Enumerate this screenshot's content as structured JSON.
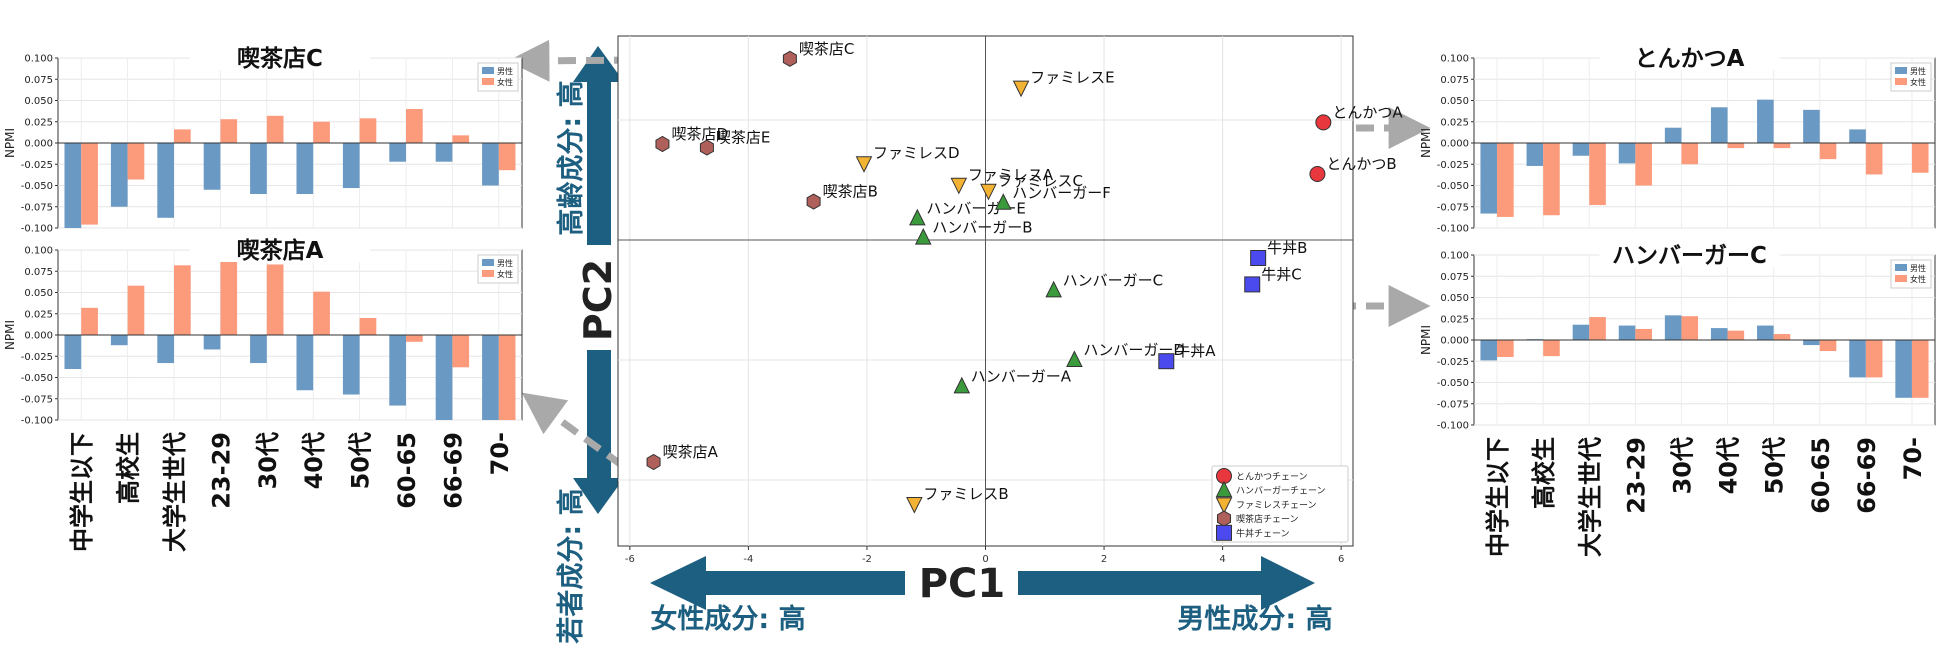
{
  "colors": {
    "male": "#6a99c4",
    "female": "#fb9b7c",
    "axis_arrow": "#1d5f80",
    "dash_arrow": "#a9a9a9",
    "tonkatsu": "#e8383d",
    "hamburger": "#3b9a3b",
    "famires": "#f2b233",
    "kissa": "#b0605a",
    "gyudon": "#4a4aee"
  },
  "age_groups": [
    "中学生以下",
    "高校生",
    "大学生世代",
    "23-29",
    "30代",
    "40代",
    "50代",
    "60-65",
    "66-69",
    "70-"
  ],
  "pca": {
    "xlabel": "PC1",
    "ylabel": "PC2",
    "x_low": "女性成分: 高",
    "x_high": "男性成分: 高",
    "y_high": "高齢成分: 高",
    "y_low": "若者成分: 高"
  },
  "chart_data": [
    {
      "type": "scatter",
      "id": "pca",
      "xlim": [
        -6.2,
        6.2
      ],
      "ylim": [
        -2.55,
        1.7
      ],
      "xticks": [
        "-6",
        "-4",
        "-2",
        "0",
        "2",
        "4",
        "6"
      ],
      "grid": true,
      "legend_position": "bottom-right",
      "series": [
        {
          "name": "とんかつチェーン",
          "color": "#e8383d",
          "marker": "circle",
          "points": [
            {
              "label": "とんかつA",
              "x": 5.7,
              "y": 0.98
            },
            {
              "label": "とんかつB",
              "x": 5.6,
              "y": 0.55
            }
          ]
        },
        {
          "name": "ハンバーガーチェーン",
          "color": "#3b9a3b",
          "marker": "triangle-up",
          "points": [
            {
              "label": "ハンバーガーA",
              "x": -0.4,
              "y": -1.22
            },
            {
              "label": "ハンバーガーB",
              "x": -1.05,
              "y": 0.02
            },
            {
              "label": "ハンバーガーC",
              "x": 1.15,
              "y": -0.42
            },
            {
              "label": "ハンバーガーD",
              "x": 1.5,
              "y": -1.0
            },
            {
              "label": "ハンバーガーE",
              "x": -1.15,
              "y": 0.18
            },
            {
              "label": "ハンバーガーF",
              "x": 0.3,
              "y": 0.31
            }
          ]
        },
        {
          "name": "ファミレスチェーン",
          "color": "#f2b233",
          "marker": "triangle-down",
          "points": [
            {
              "label": "ファミレスA",
              "x": -0.45,
              "y": 0.46
            },
            {
              "label": "ファミレスB",
              "x": -1.2,
              "y": -2.2
            },
            {
              "label": "ファミレスC",
              "x": 0.05,
              "y": 0.41
            },
            {
              "label": "ファミレスD",
              "x": -2.05,
              "y": 0.64
            },
            {
              "label": "ファミレスE",
              "x": 0.6,
              "y": 1.27
            }
          ]
        },
        {
          "name": "喫茶店チェーン",
          "color": "#b0605a",
          "marker": "hexagon",
          "points": [
            {
              "label": "喫茶店A",
              "x": -5.6,
              "y": -1.85
            },
            {
              "label": "喫茶店B",
              "x": -2.9,
              "y": 0.32
            },
            {
              "label": "喫茶店C",
              "x": -3.3,
              "y": 1.51
            },
            {
              "label": "喫茶店D",
              "x": -5.45,
              "y": 0.8
            },
            {
              "label": "喫茶店E",
              "x": -4.7,
              "y": 0.77
            }
          ]
        },
        {
          "name": "牛丼チェーン",
          "color": "#4a4aee",
          "marker": "square",
          "points": [
            {
              "label": "牛丼A",
              "x": 3.05,
              "y": -1.01
            },
            {
              "label": "牛丼B",
              "x": 4.6,
              "y": -0.15
            },
            {
              "label": "牛丼C",
              "x": 4.5,
              "y": -0.37
            }
          ]
        }
      ]
    },
    {
      "type": "bar",
      "id": "kissa_c",
      "title": "喫茶店C",
      "ylabel": "NPMI",
      "categories": [
        "中学生以下",
        "高校生",
        "大学生世代",
        "23-29",
        "30代",
        "40代",
        "50代",
        "60-65",
        "66-69",
        "70-"
      ],
      "ylim": [
        -0.1,
        0.1
      ],
      "yticks": [
        "0.100",
        "0.075",
        "0.050",
        "0.025",
        "0.000",
        "-0.025",
        "-0.050",
        "-0.075",
        "-0.100"
      ],
      "legend_position": "top-right",
      "series": [
        {
          "name": "男性",
          "values": [
            -0.1,
            -0.075,
            -0.088,
            -0.055,
            -0.06,
            -0.06,
            -0.053,
            -0.022,
            -0.022,
            -0.05
          ]
        },
        {
          "name": "女性",
          "values": [
            -0.096,
            -0.043,
            0.016,
            0.028,
            0.032,
            0.025,
            0.029,
            0.04,
            0.009,
            -0.032
          ]
        }
      ]
    },
    {
      "type": "bar",
      "id": "kissa_a",
      "title": "喫茶店A",
      "ylabel": "NPMI",
      "categories": [
        "中学生以下",
        "高校生",
        "大学生世代",
        "23-29",
        "30代",
        "40代",
        "50代",
        "60-65",
        "66-69",
        "70-"
      ],
      "ylim": [
        -0.1,
        0.1
      ],
      "yticks": [
        "0.100",
        "0.075",
        "0.050",
        "0.025",
        "0.000",
        "-0.025",
        "-0.050",
        "-0.075",
        "-0.100"
      ],
      "legend_position": "top-right",
      "series": [
        {
          "name": "男性",
          "values": [
            -0.04,
            -0.012,
            -0.033,
            -0.017,
            -0.033,
            -0.065,
            -0.07,
            -0.083,
            -0.1,
            -0.1
          ]
        },
        {
          "name": "女性",
          "values": [
            0.032,
            0.058,
            0.082,
            0.091,
            0.083,
            0.051,
            0.02,
            -0.008,
            -0.038,
            -0.1
          ]
        }
      ]
    },
    {
      "type": "bar",
      "id": "tonkatsu_a",
      "title": "とんかつA",
      "ylabel": "NPMI",
      "categories": [
        "中学生以下",
        "高校生",
        "大学生世代",
        "23-29",
        "30代",
        "40代",
        "50代",
        "60-65",
        "66-69",
        "70-"
      ],
      "ylim": [
        -0.1,
        0.1
      ],
      "yticks": [
        "0.100",
        "0.075",
        "0.050",
        "0.025",
        "0.000",
        "-0.025",
        "-0.050",
        "-0.075",
        "-0.100"
      ],
      "legend_position": "top-right",
      "series": [
        {
          "name": "男性",
          "values": [
            -0.083,
            -0.027,
            -0.015,
            -0.024,
            0.018,
            0.042,
            0.051,
            0.039,
            0.016,
            0.0
          ]
        },
        {
          "name": "女性",
          "values": [
            -0.087,
            -0.085,
            -0.073,
            -0.05,
            -0.025,
            -0.006,
            -0.006,
            -0.019,
            -0.037,
            -0.035
          ]
        }
      ]
    },
    {
      "type": "bar",
      "id": "hamburger_c",
      "title": "ハンバーガーC",
      "ylabel": "NPMI",
      "categories": [
        "中学生以下",
        "高校生",
        "大学生世代",
        "23-29",
        "30代",
        "40代",
        "50代",
        "60-65",
        "66-69",
        "70-"
      ],
      "ylim": [
        -0.1,
        0.1
      ],
      "yticks": [
        "0.100",
        "0.075",
        "0.050",
        "0.025",
        "0.000",
        "-0.025",
        "-0.050",
        "-0.075",
        "-0.100"
      ],
      "legend_position": "top-right",
      "series": [
        {
          "name": "男性",
          "values": [
            -0.024,
            0.001,
            0.018,
            0.017,
            0.029,
            0.014,
            0.017,
            -0.006,
            -0.044,
            -0.068
          ]
        },
        {
          "name": "女性",
          "values": [
            -0.02,
            -0.019,
            0.027,
            0.013,
            0.028,
            0.011,
            0.007,
            -0.013,
            -0.044,
            -0.068
          ]
        }
      ]
    }
  ]
}
